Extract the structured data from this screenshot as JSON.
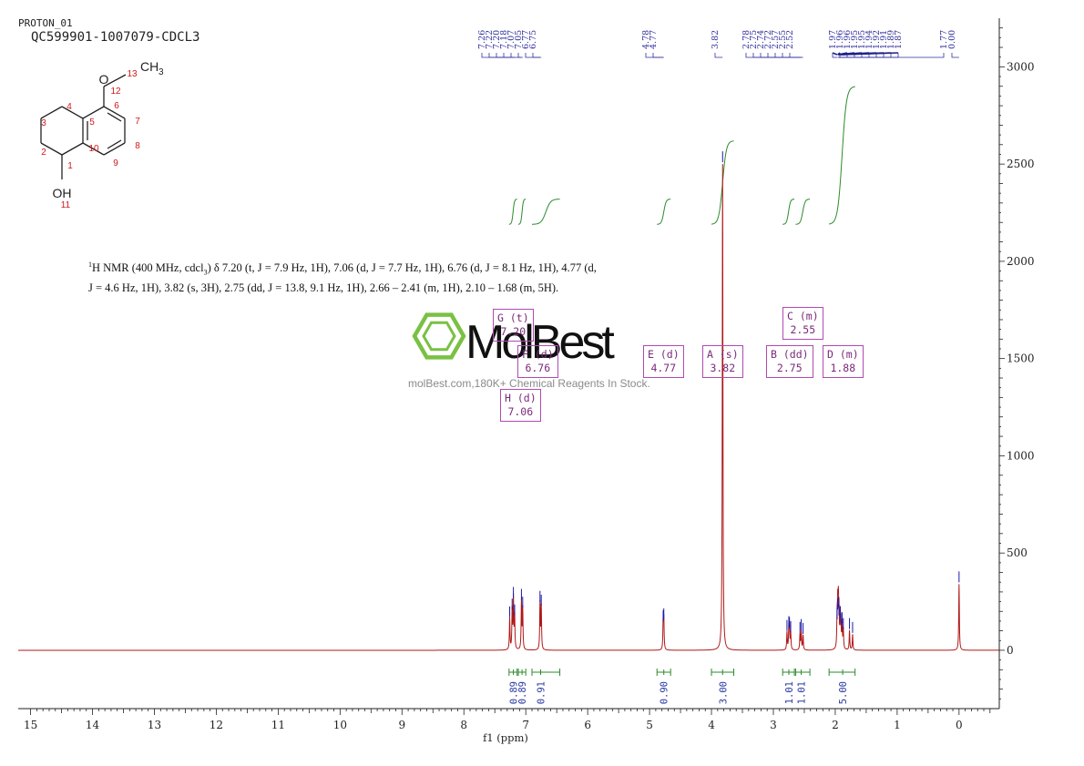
{
  "header": {
    "experiment": "PROTON_01",
    "sample": "QC599901-1007079-CDCL3"
  },
  "structure": {
    "atom_labels": [
      "1",
      "2",
      "3",
      "4",
      "5",
      "6",
      "7",
      "8",
      "9",
      "10",
      "11",
      "12",
      "13"
    ],
    "oxygen_top": "O",
    "methyl": "CH",
    "methyl_sub": "3",
    "hydroxyl": "OH"
  },
  "nmr_description": {
    "line1_pre": "1",
    "line1": "H NMR (400 MHz, cdcl",
    "line1_sub": "3",
    "text": ") δ 7.20 (t, J = 7.9 Hz, 1H), 7.06 (d, J = 7.7 Hz, 1H), 6.76 (d, J = 8.1 Hz, 1H), 4.77 (d, J = 4.6 Hz, 1H), 3.82 (s, 3H), 2.75 (dd, J = 13.8, 9.1 Hz, 1H), 2.66 – 2.41 (m, 1H), 2.10 – 1.68 (m, 5H)."
  },
  "watermark": {
    "brand": "MolBest",
    "url": "molBest.com,180K+ Chemical Reagents In Stock."
  },
  "peak_labels": [
    "7.26",
    "7.22",
    "7.20",
    "7.18",
    "7.07",
    "7.05",
    "6.77",
    "6.75",
    "4.78",
    "4.77",
    "3.82",
    "2.78",
    "2.75",
    "2.74",
    "2.72",
    "2.57",
    "2.55",
    "2.52",
    "1.97",
    "1.96",
    "1.96",
    "1.95",
    "1.95",
    "1.94",
    "1.92",
    "1.91",
    "1.89",
    "1.87",
    "1.77",
    "0.00"
  ],
  "multiplets": [
    {
      "id": "G",
      "mult": "t",
      "shift": "7.20"
    },
    {
      "id": "F",
      "mult": "d",
      "shift": "6.76"
    },
    {
      "id": "H",
      "mult": "d",
      "shift": "7.06"
    },
    {
      "id": "E",
      "mult": "d",
      "shift": "4.77"
    },
    {
      "id": "A",
      "mult": "s",
      "shift": "3.82"
    },
    {
      "id": "B",
      "mult": "dd",
      "shift": "2.75"
    },
    {
      "id": "C",
      "mult": "m",
      "shift": "2.55"
    },
    {
      "id": "D",
      "mult": "m",
      "shift": "1.88"
    }
  ],
  "integrals": [
    {
      "value": "0.89",
      "center": 7.2,
      "from": 7.27,
      "to": 7.14
    },
    {
      "value": "0.89",
      "center": 7.06,
      "from": 7.12,
      "to": 7.0
    },
    {
      "value": "0.91",
      "center": 6.76,
      "from": 6.9,
      "to": 6.45
    },
    {
      "value": "0.90",
      "center": 4.77,
      "from": 4.88,
      "to": 4.66
    },
    {
      "value": "3.00",
      "center": 3.82,
      "from": 4.0,
      "to": 3.64
    },
    {
      "value": "1.01",
      "center": 2.75,
      "from": 2.85,
      "to": 2.66
    },
    {
      "value": "1.01",
      "center": 2.55,
      "from": 2.64,
      "to": 2.41
    },
    {
      "value": "5.00",
      "center": 1.88,
      "from": 2.1,
      "to": 1.68
    }
  ],
  "chart_data": {
    "type": "line",
    "xlabel": "f1 (ppm)",
    "ylabel": "",
    "xlim": [
      15.2,
      -0.65
    ],
    "ylim": [
      -300,
      3250
    ],
    "x_ticks": [
      15,
      14,
      13,
      12,
      11,
      10,
      9,
      8,
      7,
      6,
      5,
      4,
      3,
      2,
      1,
      0
    ],
    "y_ticks": [
      0,
      500,
      1000,
      1500,
      2000,
      2500,
      3000
    ],
    "grid": false,
    "series": [
      {
        "peaks": [
          {
            "x": 7.26,
            "y": 160
          },
          {
            "x": 7.22,
            "y": 200
          },
          {
            "x": 7.2,
            "y": 260
          },
          {
            "x": 7.18,
            "y": 170
          },
          {
            "x": 7.07,
            "y": 250
          },
          {
            "x": 7.05,
            "y": 210
          },
          {
            "x": 6.77,
            "y": 240
          },
          {
            "x": 6.75,
            "y": 220
          },
          {
            "x": 4.78,
            "y": 140
          },
          {
            "x": 4.77,
            "y": 150
          },
          {
            "x": 3.82,
            "y": 2500
          },
          {
            "x": 2.78,
            "y": 90
          },
          {
            "x": 2.75,
            "y": 110
          },
          {
            "x": 2.74,
            "y": 105
          },
          {
            "x": 2.72,
            "y": 85
          },
          {
            "x": 2.57,
            "y": 80
          },
          {
            "x": 2.55,
            "y": 95
          },
          {
            "x": 2.52,
            "y": 75
          },
          {
            "x": 1.97,
            "y": 150
          },
          {
            "x": 1.96,
            "y": 200
          },
          {
            "x": 1.95,
            "y": 210
          },
          {
            "x": 1.94,
            "y": 170
          },
          {
            "x": 1.92,
            "y": 160
          },
          {
            "x": 1.91,
            "y": 120
          },
          {
            "x": 1.89,
            "y": 130
          },
          {
            "x": 1.87,
            "y": 100
          },
          {
            "x": 1.77,
            "y": 100
          },
          {
            "x": 1.72,
            "y": 80
          },
          {
            "x": 0.0,
            "y": 340
          }
        ]
      }
    ],
    "integral_curves": [
      {
        "from": 7.27,
        "to": 7.14,
        "base": 2190,
        "top": 2320
      },
      {
        "from": 7.12,
        "to": 7.0,
        "base": 2190,
        "top": 2320
      },
      {
        "from": 6.9,
        "to": 6.45,
        "base": 2190,
        "top": 2320
      },
      {
        "from": 4.88,
        "to": 4.66,
        "base": 2190,
        "top": 2320
      },
      {
        "from": 4.0,
        "to": 3.64,
        "base": 2190,
        "top": 2620
      },
      {
        "from": 2.85,
        "to": 2.66,
        "base": 2190,
        "top": 2320
      },
      {
        "from": 2.64,
        "to": 2.41,
        "base": 2190,
        "top": 2320
      },
      {
        "from": 2.1,
        "to": 1.68,
        "base": 2190,
        "top": 2900
      }
    ]
  },
  "colors": {
    "spectrum": "#b01818",
    "peak_marker": "#1a1aa8",
    "integral": "#2c8a2c",
    "integral_bar": "#2c8a2c",
    "annotation": "#b04ab0",
    "watermark_green": "#7ac143",
    "axis": "#222222"
  }
}
